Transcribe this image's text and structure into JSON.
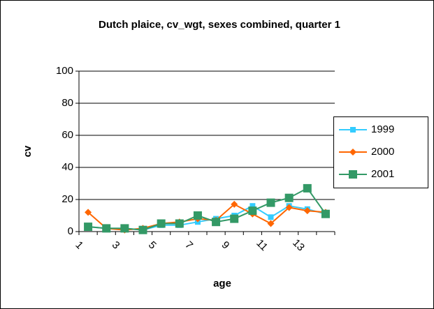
{
  "chart_data": {
    "type": "line",
    "title": "Dutch plaice, cv_wgt, sexes combined, quarter 1",
    "x_label": "age",
    "y_label": "cv",
    "categories": [
      "1",
      null,
      "3",
      null,
      "5",
      null,
      "7",
      null,
      "9",
      null,
      "11",
      null,
      "13",
      null
    ],
    "series": [
      {
        "name": "1999",
        "color": "#33ccff",
        "marker": "square",
        "values": [
          3,
          2,
          2,
          1,
          4,
          4,
          6,
          8,
          10,
          16,
          9,
          16,
          14,
          11
        ]
      },
      {
        "name": "2000",
        "color": "#ff6600",
        "marker": "diamond",
        "values": [
          12,
          2,
          1,
          2,
          5,
          6,
          8,
          7,
          17,
          11,
          5,
          15,
          13,
          12
        ]
      },
      {
        "name": "2001",
        "color": "#339966",
        "marker": "square",
        "values": [
          3,
          2,
          2,
          1,
          5,
          5,
          10,
          6,
          8,
          13,
          18,
          21,
          27,
          11
        ]
      }
    ],
    "ylim": [
      0,
      100
    ],
    "yticks": [
      0,
      20,
      40,
      60,
      80,
      100
    ],
    "grid": true,
    "legend": "right"
  }
}
